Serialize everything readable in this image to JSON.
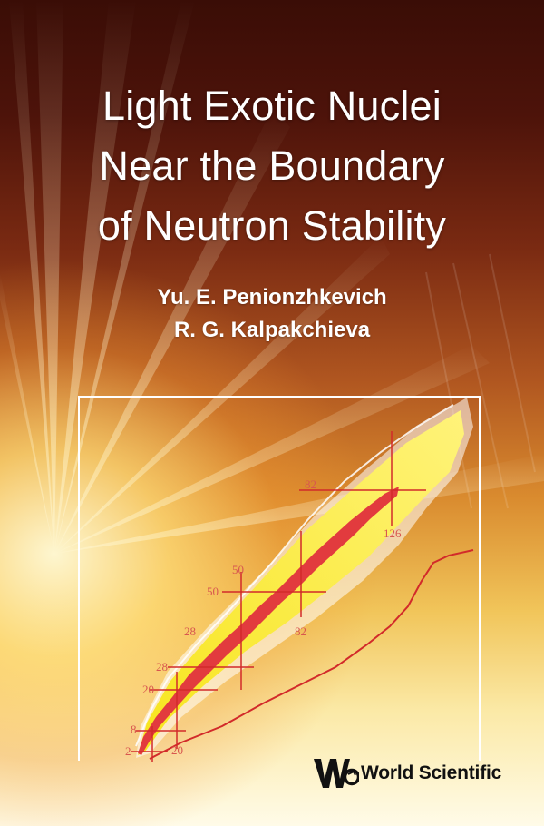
{
  "cover": {
    "title_lines": [
      "Light Exotic Nuclei",
      "Near the Boundary",
      "of Neutron Stability"
    ],
    "authors": [
      "Yu. E. Penionzhkevich",
      "R. G. Kalpakchieva"
    ],
    "publisher": "World Scientific"
  },
  "figure": {
    "magic_number_labels": {
      "proton": [
        "2",
        "8",
        "20",
        "28",
        "28",
        "50",
        "50",
        "82"
      ],
      "neutron": [
        "20",
        "82",
        "126"
      ]
    },
    "colors": {
      "stable_nuclei": "#e23b3e",
      "known_region": "#f5e61e",
      "drip_line": "#d22a2a",
      "label": "#d8574f"
    }
  },
  "colors": {
    "background_top": "#3a0d06",
    "background_bottom": "#fffbe8",
    "title_text": "#ffffff",
    "publisher_text": "#111111"
  }
}
